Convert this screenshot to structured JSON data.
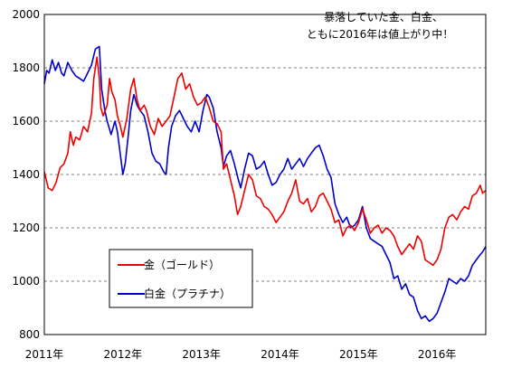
{
  "chart_data": {
    "type": "line",
    "title": "",
    "annotation": [
      "暴落していた金、白金、",
      "ともに2016年は値上がり中！"
    ],
    "xlabel": "",
    "ylabel": "",
    "ylim": [
      800,
      2000
    ],
    "yticks": [
      "2000",
      "1800",
      "1600",
      "1400",
      "1200",
      "1000",
      "800"
    ],
    "xlim": [
      2011.0,
      2016.62
    ],
    "xticks": [
      {
        "year": 2011,
        "label": "2011年"
      },
      {
        "year": 2012,
        "label": "2012年"
      },
      {
        "year": 2013,
        "label": "2013年"
      },
      {
        "year": 2014,
        "label": "2014年"
      },
      {
        "year": 2015,
        "label": "2015年"
      },
      {
        "year": 2016,
        "label": "2016年"
      }
    ],
    "grid": "horizontal dashed",
    "legend_position": "bottom-left",
    "series": [
      {
        "name": "金（ゴールド）",
        "color": "#ee0000",
        "points": [
          [
            2011.0,
            1410
          ],
          [
            2011.05,
            1350
          ],
          [
            2011.1,
            1340
          ],
          [
            2011.15,
            1370
          ],
          [
            2011.2,
            1425
          ],
          [
            2011.25,
            1440
          ],
          [
            2011.3,
            1480
          ],
          [
            2011.33,
            1560
          ],
          [
            2011.37,
            1510
          ],
          [
            2011.4,
            1540
          ],
          [
            2011.45,
            1530
          ],
          [
            2011.5,
            1580
          ],
          [
            2011.55,
            1560
          ],
          [
            2011.6,
            1630
          ],
          [
            2011.63,
            1760
          ],
          [
            2011.67,
            1840
          ],
          [
            2011.7,
            1760
          ],
          [
            2011.72,
            1650
          ],
          [
            2011.75,
            1620
          ],
          [
            2011.8,
            1660
          ],
          [
            2011.83,
            1760
          ],
          [
            2011.86,
            1710
          ],
          [
            2011.9,
            1680
          ],
          [
            2011.93,
            1620
          ],
          [
            2011.97,
            1580
          ],
          [
            2012.0,
            1540
          ],
          [
            2012.05,
            1610
          ],
          [
            2012.1,
            1720
          ],
          [
            2012.14,
            1760
          ],
          [
            2012.18,
            1680
          ],
          [
            2012.22,
            1640
          ],
          [
            2012.27,
            1660
          ],
          [
            2012.3,
            1640
          ],
          [
            2012.35,
            1580
          ],
          [
            2012.4,
            1550
          ],
          [
            2012.45,
            1610
          ],
          [
            2012.5,
            1580
          ],
          [
            2012.55,
            1600
          ],
          [
            2012.6,
            1620
          ],
          [
            2012.65,
            1690
          ],
          [
            2012.7,
            1760
          ],
          [
            2012.75,
            1780
          ],
          [
            2012.8,
            1720
          ],
          [
            2012.85,
            1740
          ],
          [
            2012.9,
            1690
          ],
          [
            2012.95,
            1660
          ],
          [
            2013.0,
            1670
          ],
          [
            2013.05,
            1690
          ],
          [
            2013.1,
            1650
          ],
          [
            2013.15,
            1600
          ],
          [
            2013.2,
            1590
          ],
          [
            2013.25,
            1560
          ],
          [
            2013.28,
            1420
          ],
          [
            2013.32,
            1440
          ],
          [
            2013.37,
            1380
          ],
          [
            2013.42,
            1320
          ],
          [
            2013.46,
            1250
          ],
          [
            2013.5,
            1280
          ],
          [
            2013.55,
            1340
          ],
          [
            2013.6,
            1400
          ],
          [
            2013.65,
            1380
          ],
          [
            2013.7,
            1320
          ],
          [
            2013.75,
            1310
          ],
          [
            2013.8,
            1280
          ],
          [
            2013.85,
            1270
          ],
          [
            2013.9,
            1250
          ],
          [
            2013.95,
            1220
          ],
          [
            2014.0,
            1240
          ],
          [
            2014.05,
            1260
          ],
          [
            2014.1,
            1300
          ],
          [
            2014.15,
            1330
          ],
          [
            2014.2,
            1380
          ],
          [
            2014.25,
            1300
          ],
          [
            2014.3,
            1290
          ],
          [
            2014.35,
            1310
          ],
          [
            2014.4,
            1260
          ],
          [
            2014.45,
            1280
          ],
          [
            2014.5,
            1320
          ],
          [
            2014.55,
            1330
          ],
          [
            2014.6,
            1300
          ],
          [
            2014.65,
            1270
          ],
          [
            2014.7,
            1220
          ],
          [
            2014.75,
            1230
          ],
          [
            2014.8,
            1170
          ],
          [
            2014.85,
            1200
          ],
          [
            2014.9,
            1210
          ],
          [
            2014.95,
            1190
          ],
          [
            2015.0,
            1220
          ],
          [
            2015.05,
            1270
          ],
          [
            2015.1,
            1230
          ],
          [
            2015.15,
            1180
          ],
          [
            2015.2,
            1200
          ],
          [
            2015.25,
            1210
          ],
          [
            2015.3,
            1180
          ],
          [
            2015.35,
            1200
          ],
          [
            2015.4,
            1190
          ],
          [
            2015.45,
            1170
          ],
          [
            2015.5,
            1130
          ],
          [
            2015.55,
            1100
          ],
          [
            2015.6,
            1120
          ],
          [
            2015.65,
            1140
          ],
          [
            2015.7,
            1120
          ],
          [
            2015.75,
            1170
          ],
          [
            2015.8,
            1150
          ],
          [
            2015.85,
            1080
          ],
          [
            2015.9,
            1070
          ],
          [
            2015.95,
            1060
          ],
          [
            2016.0,
            1080
          ],
          [
            2016.05,
            1120
          ],
          [
            2016.1,
            1200
          ],
          [
            2016.15,
            1240
          ],
          [
            2016.2,
            1250
          ],
          [
            2016.25,
            1230
          ],
          [
            2016.3,
            1260
          ],
          [
            2016.35,
            1280
          ],
          [
            2016.4,
            1270
          ],
          [
            2016.45,
            1320
          ],
          [
            2016.5,
            1330
          ],
          [
            2016.55,
            1360
          ],
          [
            2016.58,
            1330
          ],
          [
            2016.62,
            1340
          ]
        ]
      },
      {
        "name": "白金（プラチナ）",
        "color": "#0000cc",
        "points": [
          [
            2011.0,
            1740
          ],
          [
            2011.03,
            1790
          ],
          [
            2011.06,
            1780
          ],
          [
            2011.1,
            1830
          ],
          [
            2011.14,
            1790
          ],
          [
            2011.18,
            1820
          ],
          [
            2011.22,
            1780
          ],
          [
            2011.25,
            1770
          ],
          [
            2011.3,
            1820
          ],
          [
            2011.35,
            1790
          ],
          [
            2011.4,
            1770
          ],
          [
            2011.45,
            1760
          ],
          [
            2011.5,
            1750
          ],
          [
            2011.55,
            1780
          ],
          [
            2011.6,
            1810
          ],
          [
            2011.65,
            1870
          ],
          [
            2011.7,
            1880
          ],
          [
            2011.73,
            1720
          ],
          [
            2011.77,
            1640
          ],
          [
            2011.8,
            1600
          ],
          [
            2011.85,
            1550
          ],
          [
            2011.9,
            1600
          ],
          [
            2011.93,
            1560
          ],
          [
            2011.97,
            1470
          ],
          [
            2012.0,
            1400
          ],
          [
            2012.03,
            1440
          ],
          [
            2012.07,
            1550
          ],
          [
            2012.1,
            1640
          ],
          [
            2012.14,
            1700
          ],
          [
            2012.18,
            1660
          ],
          [
            2012.22,
            1640
          ],
          [
            2012.27,
            1620
          ],
          [
            2012.32,
            1560
          ],
          [
            2012.37,
            1480
          ],
          [
            2012.42,
            1450
          ],
          [
            2012.47,
            1440
          ],
          [
            2012.52,
            1410
          ],
          [
            2012.55,
            1400
          ],
          [
            2012.58,
            1500
          ],
          [
            2012.62,
            1580
          ],
          [
            2012.67,
            1620
          ],
          [
            2012.72,
            1640
          ],
          [
            2012.77,
            1610
          ],
          [
            2012.82,
            1580
          ],
          [
            2012.87,
            1560
          ],
          [
            2012.92,
            1600
          ],
          [
            2012.97,
            1560
          ],
          [
            2013.02,
            1640
          ],
          [
            2013.07,
            1700
          ],
          [
            2013.1,
            1690
          ],
          [
            2013.15,
            1650
          ],
          [
            2013.2,
            1560
          ],
          [
            2013.25,
            1500
          ],
          [
            2013.28,
            1430
          ],
          [
            2013.32,
            1470
          ],
          [
            2013.37,
            1490
          ],
          [
            2013.42,
            1440
          ],
          [
            2013.47,
            1380
          ],
          [
            2013.5,
            1350
          ],
          [
            2013.55,
            1420
          ],
          [
            2013.6,
            1480
          ],
          [
            2013.65,
            1470
          ],
          [
            2013.7,
            1420
          ],
          [
            2013.75,
            1430
          ],
          [
            2013.8,
            1450
          ],
          [
            2013.85,
            1400
          ],
          [
            2013.9,
            1360
          ],
          [
            2013.95,
            1370
          ],
          [
            2014.0,
            1400
          ],
          [
            2014.05,
            1420
          ],
          [
            2014.1,
            1460
          ],
          [
            2014.15,
            1420
          ],
          [
            2014.2,
            1440
          ],
          [
            2014.25,
            1460
          ],
          [
            2014.3,
            1430
          ],
          [
            2014.35,
            1460
          ],
          [
            2014.4,
            1480
          ],
          [
            2014.45,
            1500
          ],
          [
            2014.5,
            1510
          ],
          [
            2014.55,
            1470
          ],
          [
            2014.6,
            1420
          ],
          [
            2014.65,
            1390
          ],
          [
            2014.7,
            1290
          ],
          [
            2014.75,
            1250
          ],
          [
            2014.8,
            1220
          ],
          [
            2014.85,
            1240
          ],
          [
            2014.9,
            1200
          ],
          [
            2014.95,
            1210
          ],
          [
            2015.0,
            1230
          ],
          [
            2015.05,
            1280
          ],
          [
            2015.1,
            1200
          ],
          [
            2015.15,
            1160
          ],
          [
            2015.2,
            1150
          ],
          [
            2015.25,
            1140
          ],
          [
            2015.3,
            1130
          ],
          [
            2015.35,
            1100
          ],
          [
            2015.4,
            1070
          ],
          [
            2015.45,
            1010
          ],
          [
            2015.5,
            1020
          ],
          [
            2015.55,
            970
          ],
          [
            2015.6,
            990
          ],
          [
            2015.65,
            950
          ],
          [
            2015.7,
            940
          ],
          [
            2015.75,
            890
          ],
          [
            2015.8,
            860
          ],
          [
            2015.85,
            870
          ],
          [
            2015.9,
            850
          ],
          [
            2015.95,
            860
          ],
          [
            2016.0,
            880
          ],
          [
            2016.05,
            920
          ],
          [
            2016.1,
            960
          ],
          [
            2016.15,
            1010
          ],
          [
            2016.2,
            1000
          ],
          [
            2016.25,
            990
          ],
          [
            2016.3,
            1010
          ],
          [
            2016.35,
            1000
          ],
          [
            2016.4,
            1020
          ],
          [
            2016.45,
            1060
          ],
          [
            2016.5,
            1080
          ],
          [
            2016.55,
            1100
          ],
          [
            2016.58,
            1110
          ],
          [
            2016.62,
            1130
          ]
        ]
      }
    ]
  }
}
